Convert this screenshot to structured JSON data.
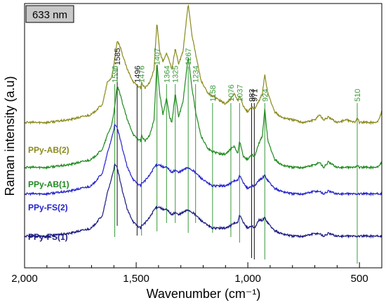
{
  "chart_data": {
    "type": "line",
    "title": "633 nm",
    "xlabel": "Wavenumber (cm⁻¹)",
    "ylabel": "Raman intensity (a.u)",
    "xlim": [
      2000,
      400
    ],
    "x_reversed": true,
    "ylim": [
      0,
      1
    ],
    "grid": false,
    "x_ticks": [
      {
        "value": 2000,
        "label": "2,000"
      },
      {
        "value": 1500,
        "label": "1,500"
      },
      {
        "value": 1000,
        "label": "1,000"
      },
      {
        "value": 500,
        "label": "500"
      }
    ],
    "x_minor_ticks": [
      1900,
      1800,
      1700,
      1600,
      1400,
      1300,
      1200,
      1100,
      900,
      800,
      700,
      600,
      400
    ],
    "y_ticks_shown": false,
    "peak_markers": [
      {
        "value": 1596,
        "label": "1596",
        "color": "#3a9a3a"
      },
      {
        "value": 1585,
        "label": "1585",
        "color": "#111111"
      },
      {
        "value": 1496,
        "label": "1496",
        "color": "#111111"
      },
      {
        "value": 1476,
        "label": "1476",
        "color": "#3a9a3a"
      },
      {
        "value": 1407,
        "label": "1407",
        "color": "#3a9a3a"
      },
      {
        "value": 1364,
        "label": "1364",
        "color": "#3a9a3a"
      },
      {
        "value": 1325,
        "label": "1325",
        "color": "#3a9a3a"
      },
      {
        "value": 1267,
        "label": "1267",
        "color": "#3a9a3a"
      },
      {
        "value": 1234,
        "label": "1234",
        "color": "#3a9a3a"
      },
      {
        "value": 1158,
        "label": "1158",
        "color": "#3a9a3a"
      },
      {
        "value": 1076,
        "label": "1076",
        "color": "#3a9a3a"
      },
      {
        "value": 1037,
        "label": "1037",
        "color": "#3a9a3a"
      },
      {
        "value": 983,
        "label": "983",
        "color": "#111111"
      },
      {
        "value": 971,
        "label": "971",
        "color": "#111111"
      },
      {
        "value": 924,
        "label": "924",
        "color": "#3a9a3a"
      },
      {
        "value": 510,
        "label": "510",
        "color": "#3a9a3a"
      }
    ],
    "series": [
      {
        "name": "PPy-AB(2)",
        "color": "#8a8a1e",
        "baseline": 0.55,
        "x": [
          2000,
          1900,
          1800,
          1700,
          1650,
          1630,
          1610,
          1596,
          1585,
          1570,
          1540,
          1510,
          1496,
          1480,
          1476,
          1460,
          1440,
          1420,
          1407,
          1395,
          1380,
          1364,
          1350,
          1340,
          1325,
          1310,
          1290,
          1267,
          1250,
          1234,
          1210,
          1180,
          1158,
          1120,
          1100,
          1076,
          1060,
          1045,
          1037,
          1020,
          1000,
          983,
          971,
          950,
          935,
          924,
          910,
          880,
          850,
          800,
          750,
          700,
          680,
          660,
          640,
          600,
          560,
          520,
          510,
          500,
          450,
          420,
          400
        ],
        "values": [
          0.0,
          0.0,
          0.01,
          0.03,
          0.07,
          0.15,
          0.17,
          0.24,
          0.31,
          0.28,
          0.2,
          0.15,
          0.14,
          0.13,
          0.15,
          0.13,
          0.15,
          0.2,
          0.38,
          0.27,
          0.23,
          0.26,
          0.23,
          0.2,
          0.28,
          0.22,
          0.27,
          0.45,
          0.33,
          0.26,
          0.16,
          0.11,
          0.1,
          0.08,
          0.07,
          0.09,
          0.11,
          0.08,
          0.1,
          0.06,
          0.04,
          0.06,
          0.05,
          0.08,
          0.11,
          0.18,
          0.11,
          0.04,
          0.02,
          0.01,
          0.0,
          0.01,
          0.03,
          0.01,
          0.02,
          0.0,
          0.01,
          0.0,
          0.02,
          0.0,
          0.0,
          0.0,
          0.04
        ]
      },
      {
        "name": "PPy-AB(1)",
        "color": "#1f8a1f",
        "baseline": 0.38,
        "x": [
          2000,
          1900,
          1800,
          1700,
          1650,
          1630,
          1610,
          1596,
          1585,
          1570,
          1540,
          1510,
          1496,
          1480,
          1476,
          1460,
          1440,
          1420,
          1407,
          1395,
          1380,
          1364,
          1350,
          1340,
          1325,
          1310,
          1290,
          1267,
          1250,
          1234,
          1210,
          1180,
          1158,
          1120,
          1100,
          1076,
          1060,
          1045,
          1037,
          1020,
          1000,
          983,
          971,
          950,
          935,
          924,
          910,
          880,
          850,
          800,
          750,
          700,
          680,
          660,
          640,
          600,
          560,
          520,
          510,
          500,
          450,
          420,
          400
        ],
        "values": [
          0.0,
          0.0,
          0.01,
          0.03,
          0.07,
          0.12,
          0.16,
          0.23,
          0.31,
          0.27,
          0.18,
          0.12,
          0.11,
          0.1,
          0.12,
          0.1,
          0.12,
          0.18,
          0.4,
          0.28,
          0.2,
          0.26,
          0.19,
          0.17,
          0.28,
          0.19,
          0.25,
          0.42,
          0.3,
          0.21,
          0.12,
          0.07,
          0.06,
          0.05,
          0.05,
          0.07,
          0.08,
          0.05,
          0.1,
          0.04,
          0.03,
          0.05,
          0.04,
          0.09,
          0.12,
          0.22,
          0.1,
          0.03,
          0.01,
          0.0,
          0.0,
          0.01,
          0.02,
          0.0,
          0.02,
          0.0,
          0.0,
          0.0,
          0.01,
          0.0,
          0.0,
          0.0,
          0.02
        ]
      },
      {
        "name": "PPy-FS(2)",
        "color": "#2323cc",
        "baseline": 0.28,
        "x": [
          2000,
          1900,
          1800,
          1700,
          1650,
          1630,
          1610,
          1596,
          1585,
          1570,
          1540,
          1510,
          1496,
          1480,
          1476,
          1460,
          1440,
          1420,
          1407,
          1395,
          1380,
          1364,
          1350,
          1340,
          1325,
          1310,
          1290,
          1267,
          1250,
          1234,
          1210,
          1180,
          1158,
          1120,
          1100,
          1076,
          1060,
          1045,
          1037,
          1020,
          1000,
          983,
          971,
          950,
          935,
          924,
          910,
          880,
          850,
          800,
          750,
          700,
          680,
          660,
          640,
          600,
          560,
          520,
          510,
          500,
          450,
          420,
          400
        ],
        "values": [
          0.0,
          0.0,
          0.01,
          0.03,
          0.08,
          0.15,
          0.21,
          0.26,
          0.25,
          0.2,
          0.1,
          0.05,
          0.04,
          0.03,
          0.04,
          0.05,
          0.07,
          0.1,
          0.11,
          0.11,
          0.1,
          0.1,
          0.09,
          0.08,
          0.09,
          0.08,
          0.09,
          0.1,
          0.09,
          0.08,
          0.06,
          0.04,
          0.03,
          0.03,
          0.03,
          0.04,
          0.05,
          0.05,
          0.07,
          0.04,
          0.02,
          0.03,
          0.03,
          0.05,
          0.06,
          0.07,
          0.05,
          0.02,
          0.01,
          0.0,
          0.0,
          0.01,
          0.01,
          0.0,
          0.01,
          0.0,
          0.0,
          0.0,
          0.0,
          0.0,
          0.0,
          0.0,
          0.0
        ]
      },
      {
        "name": "PPy-FS(1)",
        "color": "#1a1a80",
        "baseline": 0.12,
        "x": [
          2000,
          1900,
          1800,
          1700,
          1650,
          1630,
          1610,
          1596,
          1585,
          1570,
          1540,
          1510,
          1496,
          1480,
          1476,
          1460,
          1440,
          1420,
          1407,
          1395,
          1380,
          1364,
          1350,
          1340,
          1325,
          1310,
          1290,
          1267,
          1250,
          1234,
          1210,
          1180,
          1158,
          1120,
          1100,
          1076,
          1060,
          1045,
          1037,
          1020,
          1000,
          983,
          971,
          950,
          935,
          924,
          910,
          880,
          850,
          800,
          750,
          700,
          680,
          660,
          640,
          600,
          560,
          520,
          510,
          500,
          450,
          420,
          400
        ],
        "values": [
          0.0,
          0.0,
          0.01,
          0.03,
          0.08,
          0.16,
          0.22,
          0.27,
          0.26,
          0.2,
          0.1,
          0.05,
          0.04,
          0.03,
          0.04,
          0.05,
          0.07,
          0.1,
          0.11,
          0.11,
          0.1,
          0.1,
          0.09,
          0.08,
          0.09,
          0.08,
          0.09,
          0.1,
          0.09,
          0.08,
          0.06,
          0.04,
          0.03,
          0.03,
          0.03,
          0.04,
          0.05,
          0.05,
          0.08,
          0.05,
          0.03,
          0.04,
          0.03,
          0.06,
          0.06,
          0.07,
          0.05,
          0.02,
          0.01,
          0.0,
          0.0,
          0.01,
          0.01,
          0.0,
          0.01,
          0.0,
          0.0,
          0.0,
          0.0,
          0.0,
          0.0,
          0.0,
          0.0
        ]
      }
    ]
  }
}
